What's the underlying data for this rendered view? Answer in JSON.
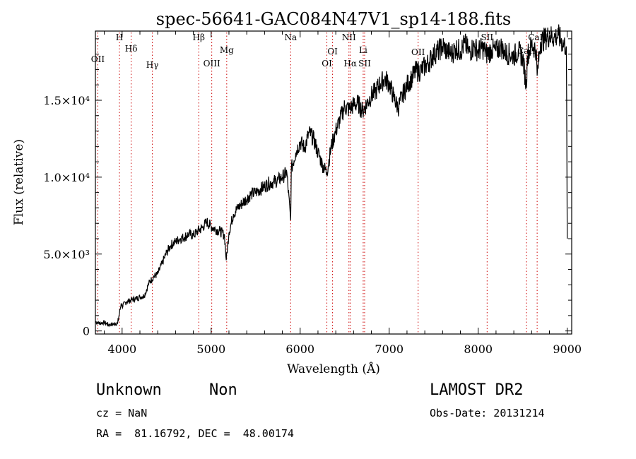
{
  "chart_data": {
    "type": "line",
    "title": "spec-56641-GAC084N47V1_sp14-188.fits",
    "xlabel": "Wavelength (Å)",
    "ylabel": "Flux (relative)",
    "xlim": [
      3700,
      9050
    ],
    "ylim": [
      -200,
      19500
    ],
    "x_ticks": [
      4000,
      5000,
      6000,
      7000,
      8000,
      9000
    ],
    "x_tick_labels": [
      "4000",
      "5000",
      "6000",
      "7000",
      "8000",
      "9000"
    ],
    "y_ticks": [
      0,
      5000,
      10000,
      15000
    ],
    "y_tick_labels": [
      "0",
      "5.0×10³",
      "1.0×10⁴",
      "1.5×10⁴"
    ],
    "series": [
      {
        "x": [
          3700,
          3750,
          3800,
          3850,
          3900,
          3950,
          3990,
          4000,
          4050,
          4100,
          4150,
          4200,
          4250,
          4300,
          4350,
          4400,
          4450,
          4500,
          4550,
          4600,
          4650,
          4700,
          4750,
          4800,
          4850,
          4900,
          4950,
          5000,
          5050,
          5100,
          5150,
          5170,
          5200,
          5250,
          5300,
          5350,
          5400,
          5450,
          5500,
          5550,
          5600,
          5650,
          5700,
          5750,
          5800,
          5850,
          5893,
          5900,
          5950,
          6000,
          6050,
          6100,
          6150,
          6200,
          6250,
          6300,
          6350,
          6400,
          6450,
          6500,
          6550,
          6600,
          6650,
          6700,
          6750,
          6800,
          6850,
          6900,
          6950,
          7000,
          7050,
          7100,
          7150,
          7200,
          7250,
          7300,
          7350,
          7400,
          7450,
          7500,
          7550,
          7600,
          7650,
          7700,
          7750,
          7800,
          7850,
          7900,
          7950,
          8000,
          8050,
          8100,
          8150,
          8200,
          8250,
          8300,
          8350,
          8400,
          8450,
          8500,
          8542,
          8550,
          8600,
          8650,
          8662,
          8700,
          8750,
          8800,
          8850,
          8900,
          8950,
          8990,
          9000
        ],
        "y": [
          600,
          500,
          550,
          400,
          450,
          500,
          1800,
          1600,
          1900,
          2000,
          2100,
          2200,
          2300,
          3100,
          3500,
          3700,
          4400,
          5100,
          5600,
          5800,
          6000,
          6100,
          6300,
          6200,
          6500,
          6700,
          7100,
          6800,
          6600,
          6500,
          6200,
          4600,
          6400,
          7600,
          8000,
          8300,
          8600,
          8900,
          9000,
          9200,
          9400,
          9600,
          9700,
          9800,
          10000,
          10300,
          7200,
          10500,
          11600,
          12300,
          11900,
          12900,
          12500,
          11600,
          10800,
          10300,
          12000,
          13000,
          13800,
          14600,
          14400,
          14700,
          14800,
          14300,
          14800,
          15300,
          15600,
          16100,
          16400,
          16100,
          15200,
          14500,
          15300,
          16000,
          16400,
          16900,
          16900,
          17200,
          17500,
          18000,
          18200,
          18500,
          18200,
          18000,
          18400,
          18200,
          18700,
          18100,
          18500,
          18200,
          18400,
          18000,
          18300,
          18200,
          18500,
          18100,
          18000,
          17900,
          18200,
          17800,
          15800,
          17900,
          18600,
          18300,
          16600,
          18800,
          19000,
          19200,
          19100,
          19200,
          18700,
          18500,
          6000
        ]
      }
    ],
    "lines": [
      {
        "label": "OII",
        "x": 3727
      },
      {
        "label": "H",
        "x": 3970
      },
      {
        "label": "Hδ",
        "x": 4102
      },
      {
        "label": "Hγ",
        "x": 4340
      },
      {
        "label": "Hβ",
        "x": 4861
      },
      {
        "label": "OIII",
        "x": 5007
      },
      {
        "label": "Mg",
        "x": 5175
      },
      {
        "label": "Na",
        "x": 5893
      },
      {
        "label": "OI",
        "x": 6300
      },
      {
        "label": "OI",
        "x": 6364
      },
      {
        "label": "NII",
        "x": 6548
      },
      {
        "label": "Hα",
        "x": 6563
      },
      {
        "label": "Li",
        "x": 6708
      },
      {
        "label": "SII",
        "x": 6724
      },
      {
        "label": "OII",
        "x": 7325
      },
      {
        "label": "SII",
        "x": 8100
      },
      {
        "label": "CaII",
        "x": 8542
      },
      {
        "label": "CaII",
        "x": 8662
      }
    ],
    "line_color": "#000000",
    "marker_color": "#cc0000"
  },
  "info": {
    "class": "Unknown",
    "subclass": "Non",
    "survey": "LAMOST DR2",
    "cz": "cz = NaN",
    "obs_date": "Obs-Date: 20131214",
    "coords": "RA =  81.16792, DEC =  48.00174"
  }
}
